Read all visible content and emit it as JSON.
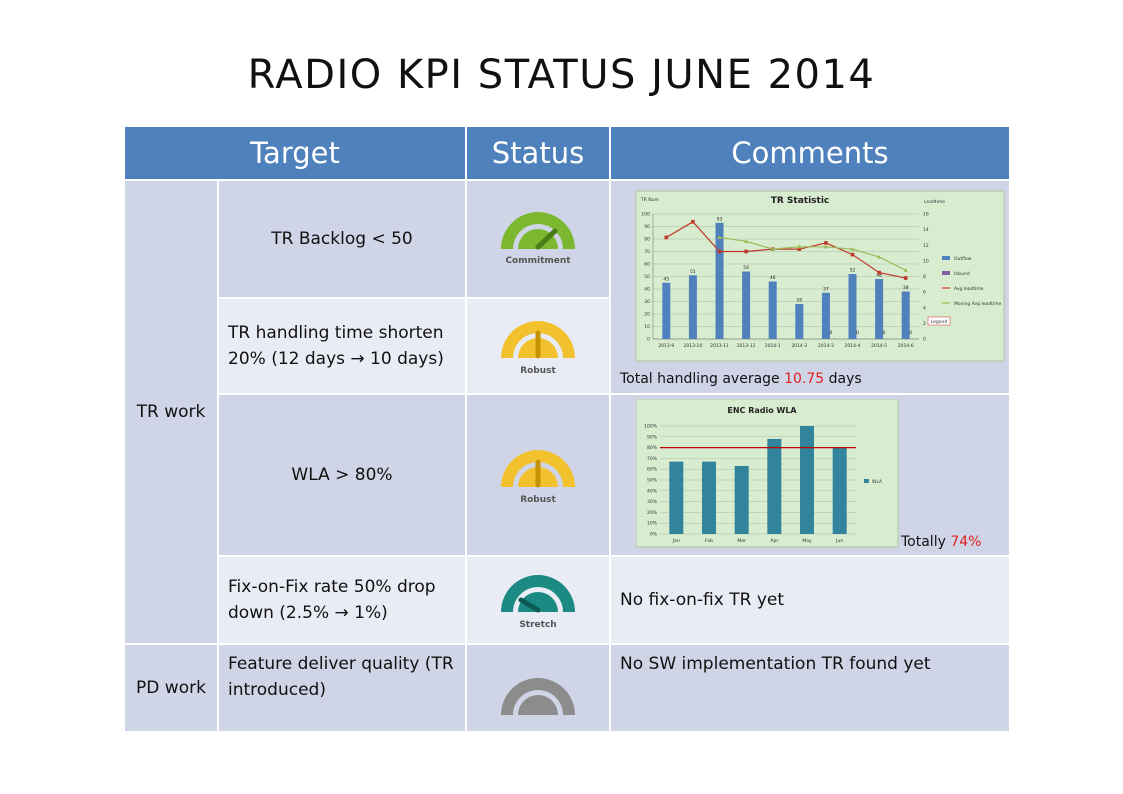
{
  "title": "RADIO KPI STATUS  JUNE 2014",
  "headers": {
    "target": "Target",
    "status": "Status",
    "comments": "Comments"
  },
  "groups": {
    "tr_work": "TR work",
    "pd_work": "PD work"
  },
  "rows": [
    {
      "target": "TR Backlog < 50",
      "status": "Commitment"
    },
    {
      "target": "TR handling time shorten 20% (12 days → 10 days)",
      "status": "Robust",
      "comment_prefix": "Total handling average ",
      "comment_value": "10.75",
      "comment_suffix": " days"
    },
    {
      "target": "WLA > 80%",
      "status": "Robust",
      "comment_prefix": "Totally ",
      "comment_value": "74%"
    },
    {
      "target": "Fix-on-Fix rate 50% drop down (2.5% → 1%)",
      "status": "Stretch",
      "comment": "No fix-on-fix TR yet"
    },
    {
      "target": "Feature deliver quality (TR introduced)",
      "status": "",
      "comment": "No SW implementation TR found yet"
    }
  ],
  "colors": {
    "header_bg": "#4f81bd",
    "row_dark": "#cfd5e6",
    "row_light": "#e9ecf4",
    "commitment": "#7cb82f",
    "robust": "#f2c12e",
    "stretch": "#1a8a82",
    "none": "#8c8c8c",
    "highlight": "#e02020",
    "chart_bg": "#d8ecd0"
  },
  "chart_data": [
    {
      "type": "bar",
      "title": "TR Statistic",
      "ylabel_left": "TR Num",
      "ylabel_right": "Leadtime",
      "categories": [
        "2013-9",
        "2013-10",
        "2013-11",
        "2013-12",
        "2014-1",
        "2014-2",
        "2014-3",
        "2014-4",
        "2014-5",
        "2014-6"
      ],
      "yticks_left": [
        "0",
        "10",
        "20",
        "30",
        "40",
        "50",
        "60",
        "70",
        "80",
        "90",
        "100"
      ],
      "yticks_right": [
        "0",
        "2",
        "4",
        "6",
        "8",
        "10",
        "12",
        "14",
        "16"
      ],
      "ylim": [
        0,
        100
      ],
      "y2lim": [
        0,
        16
      ],
      "series": [
        {
          "name": "Outflow",
          "kind": "bar",
          "values": [
            45,
            51,
            93,
            54,
            46,
            28,
            37,
            52,
            48,
            38
          ]
        },
        {
          "name": "Inbund",
          "kind": "bar",
          "values": [
            0,
            0,
            0,
            0,
            0,
            0,
            0,
            0,
            0,
            0
          ]
        },
        {
          "name": "Avg leadtime",
          "kind": "line",
          "values": [
            13,
            15,
            11.2,
            11.2,
            11.5,
            11.5,
            12.3,
            10.8,
            8.5,
            7.8
          ]
        },
        {
          "name": "Moving Avg leadtime",
          "kind": "line",
          "values": [
            null,
            null,
            13,
            12.5,
            11.5,
            11.8,
            11.8,
            11.5,
            10.5,
            8.8
          ]
        }
      ],
      "data_labels": [
        "45",
        "51",
        "93",
        "54",
        "46",
        "28",
        "37",
        "52",
        "48",
        "38"
      ],
      "zero_labels": [
        "0",
        "0",
        "0",
        "0"
      ],
      "legend_extra": "Legend",
      "legend": "right"
    },
    {
      "type": "bar",
      "title": "ENC Radio WLA",
      "categories": [
        "Jan",
        "Feb",
        "Mar",
        "Apr",
        "May",
        "Jun"
      ],
      "yticks": [
        "0%",
        "10%",
        "20%",
        "30%",
        "40%",
        "50%",
        "60%",
        "70%",
        "80%",
        "90%",
        "100%"
      ],
      "ylim": [
        0,
        100
      ],
      "series": [
        {
          "name": "WLA",
          "values": [
            67,
            67,
            63,
            88,
            100,
            80
          ]
        }
      ],
      "target_line": 80,
      "legend": "right"
    }
  ]
}
